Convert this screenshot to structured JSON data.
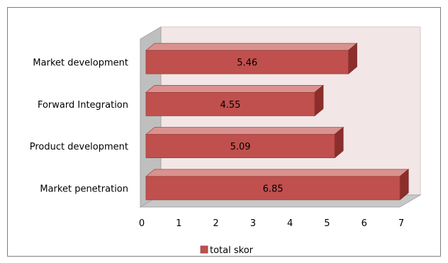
{
  "chart_data": {
    "type": "bar",
    "orientation": "horizontal",
    "style": "3d",
    "categories": [
      "Market development",
      "Forward Integration",
      "Product development",
      "Market penetration"
    ],
    "series": [
      {
        "name": "total skor",
        "values": [
          5.46,
          4.55,
          5.09,
          6.85
        ],
        "labels": [
          "5.46",
          "4.55",
          "5.09",
          "6.85"
        ]
      }
    ],
    "xlim": [
      0,
      7
    ],
    "xticks": [
      "0",
      "1",
      "2",
      "3",
      "4",
      "5",
      "6",
      "7"
    ],
    "legend_position": "bottom",
    "grid": false,
    "colors": {
      "bar_face": "#c0504d",
      "bar_top": "#d9928f",
      "bar_side": "#8b2e2c",
      "back_wall": "#f2e6e6",
      "side_wall": "#bfbfbf",
      "floor": "#c8c8c8"
    }
  }
}
